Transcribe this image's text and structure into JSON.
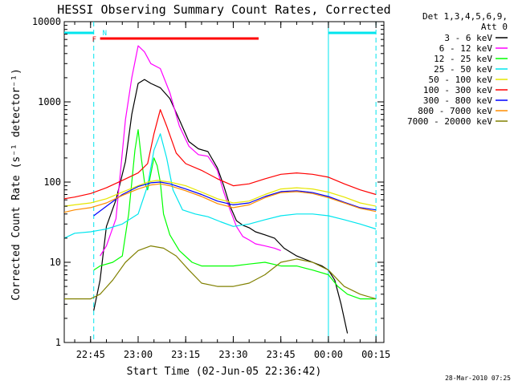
{
  "chart_data": {
    "type": "line",
    "title": "HESSI Observing Summary Count Rates, Corrected",
    "xlabel": "Start Time (02-Jun-05 22:36:42)",
    "ylabel": "Corrected Count Rate (s⁻¹ detector⁻¹)",
    "y_scale": "log",
    "ylim": [
      1,
      10000
    ],
    "xlim": [
      "22:36:42",
      "00:17:30"
    ],
    "x_tick_labels": [
      "22:45",
      "23:00",
      "23:15",
      "23:30",
      "23:45",
      "00:00",
      "00:15"
    ],
    "y_tick_labels": [
      "1",
      "10",
      "100",
      "1000",
      "10000"
    ],
    "legend_header": [
      "Det 1,3,4,5,6,9,",
      "Att 0"
    ],
    "legend_position": "right",
    "timestamp": "28-Mar-2010 07:25",
    "annotations": {
      "night_marker": "N",
      "flare_marker": "F",
      "flare_flag": {
        "start": "22:48",
        "end": "23:38",
        "color": "#ff0000"
      },
      "night_bars": [
        {
          "start": "22:36:42",
          "end": "22:46"
        },
        {
          "start": "00:00",
          "end": "00:15"
        }
      ],
      "night_lines": [
        "22:46",
        "00:00",
        "00:15"
      ],
      "night_color": "#00e5ee"
    },
    "series": [
      {
        "name": "3 - 6 keV",
        "color": "#000000",
        "points": [
          [
            "22:46",
            2.5
          ],
          [
            "22:48",
            6
          ],
          [
            "22:50",
            28
          ],
          [
            "22:53",
            60
          ],
          [
            "22:56",
            180
          ],
          [
            "22:58",
            700
          ],
          [
            "23:00",
            1700
          ],
          [
            "23:02",
            1900
          ],
          [
            "23:04",
            1700
          ],
          [
            "23:07",
            1500
          ],
          [
            "23:10",
            1100
          ],
          [
            "23:13",
            600
          ],
          [
            "23:16",
            320
          ],
          [
            "23:19",
            260
          ],
          [
            "23:22",
            240
          ],
          [
            "23:25",
            150
          ],
          [
            "23:27",
            90
          ],
          [
            "23:29",
            50
          ],
          [
            "23:31",
            33
          ],
          [
            "23:33",
            29
          ],
          [
            "23:35",
            27
          ],
          [
            "23:37",
            24
          ],
          [
            "23:40",
            22
          ],
          [
            "23:43",
            20
          ],
          [
            "23:46",
            15
          ],
          [
            "23:50",
            12
          ],
          [
            "23:55",
            10
          ],
          [
            "23:58",
            9
          ],
          [
            "00:00",
            8
          ],
          [
            "00:02",
            6
          ],
          [
            "00:04",
            3
          ],
          [
            "00:06",
            1.3
          ]
        ]
      },
      {
        "name": "6 - 12 keV",
        "color": "#ff00ff",
        "points": [
          [
            "22:48",
            12
          ],
          [
            "22:50",
            16
          ],
          [
            "22:53",
            35
          ],
          [
            "22:56",
            600
          ],
          [
            "22:58",
            2000
          ],
          [
            "23:00",
            5000
          ],
          [
            "23:02",
            4200
          ],
          [
            "23:04",
            3000
          ],
          [
            "23:07",
            2600
          ],
          [
            "23:10",
            1300
          ],
          [
            "23:13",
            500
          ],
          [
            "23:16",
            280
          ],
          [
            "23:19",
            220
          ],
          [
            "23:22",
            210
          ],
          [
            "23:25",
            140
          ],
          [
            "23:27",
            75
          ],
          [
            "23:29",
            45
          ],
          [
            "23:31",
            28
          ],
          [
            "23:33",
            21
          ],
          [
            "23:35",
            19
          ],
          [
            "23:37",
            17
          ],
          [
            "23:40",
            16
          ],
          [
            "23:43",
            15
          ],
          [
            "23:45",
            14
          ]
        ]
      },
      {
        "name": "12 - 25 keV",
        "color": "#00ff00",
        "points": [
          [
            "22:46",
            8
          ],
          [
            "22:48",
            9
          ],
          [
            "22:52",
            10
          ],
          [
            "22:55",
            12
          ],
          [
            "22:57",
            40
          ],
          [
            "22:59",
            250
          ],
          [
            "23:00",
            450
          ],
          [
            "23:01",
            200
          ],
          [
            "23:02",
            100
          ],
          [
            "23:03",
            80
          ],
          [
            "23:05",
            200
          ],
          [
            "23:06",
            160
          ],
          [
            "23:07",
            100
          ],
          [
            "23:08",
            40
          ],
          [
            "23:10",
            22
          ],
          [
            "23:13",
            14
          ],
          [
            "23:17",
            10
          ],
          [
            "23:20",
            9
          ],
          [
            "23:25",
            9
          ],
          [
            "23:30",
            9
          ],
          [
            "23:35",
            9.5
          ],
          [
            "23:40",
            10
          ],
          [
            "23:45",
            9
          ],
          [
            "23:50",
            9
          ],
          [
            "23:55",
            8
          ],
          [
            "00:00",
            7
          ],
          [
            "00:03",
            5
          ],
          [
            "00:06",
            4
          ],
          [
            "00:10",
            3.5
          ],
          [
            "00:15",
            3.5
          ]
        ]
      },
      {
        "name": "25 - 50 keV",
        "color": "#00e5ee",
        "points": [
          [
            "22:36:42",
            20
          ],
          [
            "22:40",
            23
          ],
          [
            "22:45",
            24
          ],
          [
            "22:50",
            26
          ],
          [
            "22:55",
            30
          ],
          [
            "23:00",
            40
          ],
          [
            "23:03",
            90
          ],
          [
            "23:05",
            250
          ],
          [
            "23:07",
            400
          ],
          [
            "23:09",
            200
          ],
          [
            "23:11",
            80
          ],
          [
            "23:14",
            45
          ],
          [
            "23:18",
            40
          ],
          [
            "23:22",
            37
          ],
          [
            "23:26",
            32
          ],
          [
            "23:30",
            28
          ],
          [
            "23:35",
            30
          ],
          [
            "23:40",
            34
          ],
          [
            "23:45",
            38
          ],
          [
            "23:50",
            40
          ],
          [
            "23:55",
            40
          ],
          [
            "00:00",
            38
          ],
          [
            "00:05",
            34
          ],
          [
            "00:10",
            30
          ],
          [
            "00:15",
            26
          ]
        ]
      },
      {
        "name": "50 - 100 keV",
        "color": "#e6e600",
        "points": [
          [
            "22:36:42",
            50
          ],
          [
            "22:40",
            52
          ],
          [
            "22:45",
            55
          ],
          [
            "22:50",
            62
          ],
          [
            "22:55",
            75
          ],
          [
            "23:00",
            90
          ],
          [
            "23:03",
            100
          ],
          [
            "23:06",
            105
          ],
          [
            "23:10",
            100
          ],
          [
            "23:15",
            90
          ],
          [
            "23:20",
            75
          ],
          [
            "23:25",
            62
          ],
          [
            "23:30",
            55
          ],
          [
            "23:35",
            58
          ],
          [
            "23:40",
            70
          ],
          [
            "23:45",
            82
          ],
          [
            "23:50",
            85
          ],
          [
            "23:55",
            82
          ],
          [
            "00:00",
            75
          ],
          [
            "00:05",
            65
          ],
          [
            "00:10",
            55
          ],
          [
            "00:15",
            50
          ]
        ]
      },
      {
        "name": "100 - 300 keV",
        "color": "#ff0000",
        "points": [
          [
            "22:36:42",
            62
          ],
          [
            "22:40",
            65
          ],
          [
            "22:45",
            72
          ],
          [
            "22:50",
            85
          ],
          [
            "22:55",
            105
          ],
          [
            "23:00",
            130
          ],
          [
            "23:03",
            170
          ],
          [
            "23:05",
            400
          ],
          [
            "23:07",
            800
          ],
          [
            "23:09",
            500
          ],
          [
            "23:12",
            230
          ],
          [
            "23:15",
            170
          ],
          [
            "23:20",
            140
          ],
          [
            "23:25",
            110
          ],
          [
            "23:30",
            90
          ],
          [
            "23:35",
            95
          ],
          [
            "23:40",
            110
          ],
          [
            "23:45",
            125
          ],
          [
            "23:50",
            130
          ],
          [
            "23:55",
            125
          ],
          [
            "00:00",
            115
          ],
          [
            "00:05",
            95
          ],
          [
            "00:10",
            80
          ],
          [
            "00:15",
            70
          ]
        ]
      },
      {
        "name": "300 - 800 keV",
        "color": "#0000ff",
        "points": [
          [
            "22:46",
            38
          ],
          [
            "22:50",
            50
          ],
          [
            "22:55",
            70
          ],
          [
            "23:00",
            88
          ],
          [
            "23:04",
            98
          ],
          [
            "23:07",
            100
          ],
          [
            "23:10",
            95
          ],
          [
            "23:15",
            82
          ],
          [
            "23:20",
            70
          ],
          [
            "23:25",
            58
          ],
          [
            "23:30",
            52
          ],
          [
            "23:35",
            55
          ],
          [
            "23:40",
            66
          ],
          [
            "23:45",
            76
          ],
          [
            "23:50",
            78
          ],
          [
            "23:55",
            74
          ],
          [
            "00:00",
            66
          ],
          [
            "00:05",
            56
          ],
          [
            "00:10",
            48
          ],
          [
            "00:15",
            45
          ]
        ]
      },
      {
        "name": "800 - 7000 keV",
        "color": "#ff8c00",
        "points": [
          [
            "22:36:42",
            42
          ],
          [
            "22:40",
            45
          ],
          [
            "22:45",
            48
          ],
          [
            "22:50",
            55
          ],
          [
            "22:55",
            68
          ],
          [
            "23:00",
            82
          ],
          [
            "23:04",
            92
          ],
          [
            "23:07",
            95
          ],
          [
            "23:10",
            90
          ],
          [
            "23:15",
            78
          ],
          [
            "23:20",
            66
          ],
          [
            "23:25",
            54
          ],
          [
            "23:30",
            48
          ],
          [
            "23:35",
            52
          ],
          [
            "23:40",
            64
          ],
          [
            "23:45",
            74
          ],
          [
            "23:50",
            76
          ],
          [
            "23:55",
            72
          ],
          [
            "00:00",
            64
          ],
          [
            "00:05",
            55
          ],
          [
            "00:10",
            47
          ],
          [
            "00:15",
            43
          ]
        ]
      },
      {
        "name": "7000 - 20000 keV",
        "color": "#808000",
        "points": [
          [
            "22:36:42",
            3.5
          ],
          [
            "22:40",
            3.5
          ],
          [
            "22:45",
            3.5
          ],
          [
            "22:48",
            4
          ],
          [
            "22:52",
            6
          ],
          [
            "22:56",
            10
          ],
          [
            "23:00",
            14
          ],
          [
            "23:04",
            16
          ],
          [
            "23:08",
            15
          ],
          [
            "23:12",
            12
          ],
          [
            "23:16",
            8
          ],
          [
            "23:20",
            5.5
          ],
          [
            "23:25",
            5
          ],
          [
            "23:30",
            5
          ],
          [
            "23:35",
            5.5
          ],
          [
            "23:40",
            7
          ],
          [
            "23:45",
            10
          ],
          [
            "23:50",
            11
          ],
          [
            "23:55",
            10
          ],
          [
            "00:00",
            8
          ],
          [
            "00:05",
            5
          ],
          [
            "00:10",
            4
          ],
          [
            "00:15",
            3.5
          ]
        ]
      }
    ]
  }
}
